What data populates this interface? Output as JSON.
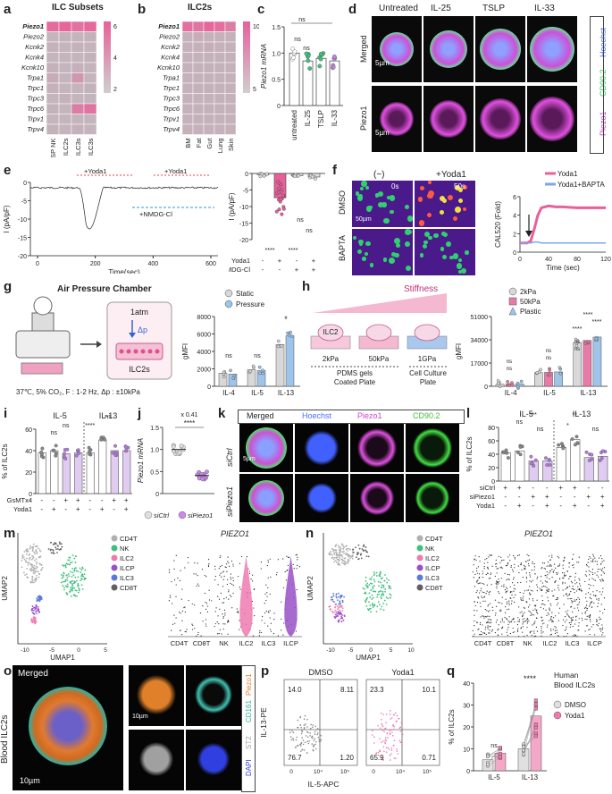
{
  "panels": {
    "a": {
      "letter": "a",
      "title": "ILC Subsets",
      "rows": [
        "Piezo1",
        "Piezo2",
        "Kcnk2",
        "Kcnk4",
        "Kcnk10",
        "Trpa1",
        "Trpc1",
        "Trpc3",
        "Trpc6",
        "Trpv1",
        "Trpv4"
      ],
      "cols": [
        "SP NK",
        "SI ILC2s",
        "DN ILC3s",
        "NKp+ ILC3s"
      ],
      "scale": [
        "6",
        "4",
        "2"
      ],
      "values": [
        [
          5.5,
          5.8,
          5.2,
          5.6
        ],
        [
          1.5,
          1.8,
          1.6,
          1.7
        ],
        [
          1.8,
          1.6,
          1.8,
          1.5
        ],
        [
          1.6,
          1.6,
          1.5,
          1.7
        ],
        [
          1.7,
          1.6,
          1.8,
          1.6
        ],
        [
          2.2,
          1.5,
          3.5,
          1.6
        ],
        [
          1.8,
          1.6,
          1.5,
          1.7
        ],
        [
          1.5,
          1.7,
          1.6,
          1.5
        ],
        [
          1.7,
          1.6,
          4.8,
          5.2
        ],
        [
          1.6,
          1.5,
          1.6,
          1.5
        ],
        [
          1.7,
          1.6,
          1.8,
          1.6
        ]
      ]
    },
    "b": {
      "letter": "b",
      "title": "ILC2s",
      "rows": [
        "Piezo1",
        "Piezo2",
        "Kcnk2",
        "Kcnk4",
        "Kcnk10",
        "Trpa1",
        "Trpc1",
        "Trpc3",
        "Trpc6",
        "Trpv1",
        "Trpv4"
      ],
      "cols": [
        "BM",
        "Fat",
        "Gut",
        "Lung",
        "Skin"
      ],
      "scale": [
        "10",
        "5"
      ],
      "values": [
        [
          9,
          8.5,
          9.5,
          9,
          8
        ],
        [
          3,
          3.5,
          3,
          3,
          3
        ],
        [
          3,
          3,
          3.5,
          3,
          3
        ],
        [
          3,
          3,
          3,
          3,
          3
        ],
        [
          3,
          3,
          3,
          3,
          3
        ],
        [
          3,
          3,
          3,
          3,
          3
        ],
        [
          3,
          3,
          3,
          3,
          3
        ],
        [
          3,
          3,
          3,
          3,
          3
        ],
        [
          3,
          3,
          3,
          3,
          3
        ],
        [
          3,
          3,
          3,
          3,
          3
        ],
        [
          3,
          3,
          3,
          3,
          3
        ]
      ]
    },
    "c": {
      "letter": "c",
      "ylabel": "Piezo1 mRNA",
      "ticks": [
        "1.5",
        "1.0",
        "0.5",
        "0"
      ],
      "groups": [
        "untreated",
        "IL-25",
        "TSLP",
        "IL-33"
      ],
      "ns": [
        "ns",
        "ns",
        "ns"
      ],
      "chart_data": {
        "type": "bar",
        "categories": [
          "untreated",
          "IL-25",
          "TSLP",
          "IL-33"
        ],
        "values": [
          1.0,
          0.85,
          0.9,
          0.85
        ],
        "ylim": [
          0,
          1.5
        ],
        "ylabel": "Piezo1 mRNA"
      }
    },
    "d": {
      "letter": "d",
      "cols": [
        "Untreated",
        "IL-25",
        "TSLP",
        "IL-33"
      ],
      "rows": [
        "Merged",
        "Piezo1"
      ],
      "scale": "5µm",
      "legend": [
        "Hoechst",
        "CD90.2",
        "Piezo1"
      ]
    },
    "e": {
      "letter": "e",
      "trace_labels": [
        "+Yoda1",
        "+Yoda1",
        "+NMDG-Cl"
      ],
      "ylabel": "I (pA/pF)",
      "xlabel": "Time(sec)",
      "xticks": [
        "0",
        "200",
        "400",
        "600"
      ],
      "yticks": [
        "0",
        "-5",
        "-10",
        "-15",
        "-20"
      ],
      "bar_ylabel": "I (pA/pF)",
      "bar_rows": [
        {
          "label": "Yoda1",
          "vals": [
            "-",
            "+",
            "-",
            "+"
          ]
        },
        {
          "label": "NMDG-Cl",
          "vals": [
            "-",
            "-",
            "+",
            "+"
          ]
        }
      ],
      "sig": [
        "****",
        "****",
        "ns",
        "ns"
      ],
      "chart_data": {
        "type": "bar",
        "categories": [
          "ctrl",
          "Yoda1",
          "NMDG-Cl",
          "Yoda1+NMDG-Cl"
        ],
        "values": [
          -0.3,
          -5.5,
          -0.5,
          -0.8
        ],
        "ylim": [
          -15,
          0
        ]
      }
    },
    "f": {
      "letter": "f",
      "headers": [
        "(−)",
        "+Yoda1"
      ],
      "rows": [
        "DMSO",
        "BAPTA"
      ],
      "times": [
        "0s",
        "50s"
      ],
      "scale": "50µm",
      "legend": [
        "Yoda1",
        "Yoda1+BAPTA"
      ],
      "ylabel": "CAL520 (Fold)",
      "xlabel": "Time (sec)",
      "xticks": [
        "0",
        "40",
        "80",
        "120"
      ],
      "yticks": [
        "6",
        "4",
        "2",
        "0"
      ],
      "chart_data": {
        "type": "line",
        "x": [
          0,
          5,
          10,
          15,
          20,
          25,
          30,
          40,
          50,
          60,
          80,
          100,
          120
        ],
        "series": [
          {
            "name": "Yoda1",
            "values": [
              1,
              1,
              1,
              1.2,
              2.5,
              4,
              4.8,
              5,
              4.9,
              4.9,
              4.8,
              4.8,
              4.8
            ]
          },
          {
            "name": "Yoda1+BAPTA",
            "values": [
              1,
              1,
              1,
              1,
              1.1,
              1.1,
              1,
              1,
              1,
              1,
              1,
              1,
              1
            ]
          }
        ],
        "ylim": [
          0,
          6
        ],
        "xlabel": "Time (sec)",
        "ylabel": "CAL520 (Fold)"
      }
    },
    "g": {
      "letter": "g",
      "title": "Air Pressure Chamber",
      "atm": "1atm",
      "dp": "Δp",
      "cells": "ILC2s",
      "cond": "37℃, 5% CO₂,  F : 1-2 Hz, Δp : ±10kPa",
      "legend": [
        "Static",
        "Pressure"
      ],
      "ylabel": "gMFI",
      "yticks": [
        "8000",
        "6000",
        "4000",
        "2000",
        "0"
      ],
      "groups": [
        "IL-4",
        "IL-5",
        "IL-13"
      ],
      "sig": [
        "ns",
        "ns",
        "*"
      ],
      "chart_data": {
        "type": "bar",
        "categories": [
          "IL-4",
          "IL-5",
          "IL-13"
        ],
        "series": [
          {
            "name": "Static",
            "values": [
              1500,
              1900,
              4800
            ]
          },
          {
            "name": "Pressure",
            "values": [
              1400,
              1800,
              5800
            ]
          }
        ],
        "ylim": [
          0,
          8000
        ],
        "ylabel": "gMFI"
      }
    },
    "h": {
      "letter": "h",
      "stiff": "Stiffness",
      "dishes": [
        "ILC2",
        "",
        ""
      ],
      "kpa": [
        "2kPa",
        "50kPa",
        "1GPa"
      ],
      "plates": [
        "PDMS gels Coated Plate",
        "Cell Culture Plate"
      ],
      "legend": [
        "2kPa",
        "50kPa",
        "Plastic"
      ],
      "ylabel": "gMFI",
      "yticks": [
        "51000",
        "34000",
        "17000",
        "0"
      ],
      "groups": [
        "IL-4",
        "IL-5",
        "IL-13"
      ],
      "sig": [
        "****",
        "****",
        "****",
        "ns",
        "ns",
        "ns",
        "ns",
        "ns",
        "ns"
      ],
      "chart_data": {
        "type": "bar",
        "categories": [
          "IL-4",
          "IL-5",
          "IL-13"
        ],
        "series": [
          {
            "name": "2kPa",
            "values": [
              1500,
              10000,
              32000
            ]
          },
          {
            "name": "50kPa",
            "values": [
              1600,
              10200,
              33500
            ]
          },
          {
            "name": "Plastic",
            "values": [
              1700,
              10500,
              36000
            ]
          }
        ],
        "ylim": [
          0,
          51000
        ],
        "ylabel": "gMFI"
      }
    },
    "i": {
      "letter": "i",
      "titles": [
        "IL-5",
        "IL-13"
      ],
      "ylabel": "% of ILC2s",
      "yticks": [
        "60",
        "40",
        "20",
        "0"
      ],
      "rows": [
        {
          "label": "GsMTx4",
          "vals": [
            "-",
            "-",
            "+",
            "+",
            "-",
            "-",
            "+",
            "+"
          ]
        },
        {
          "label": "Yoda1",
          "vals": [
            "-",
            "+",
            "-",
            "+",
            "-",
            "+",
            "-",
            "+"
          ]
        }
      ],
      "sig": [
        "ns",
        "ns",
        "****",
        "ns"
      ],
      "chart_data": {
        "type": "bar",
        "categories": [
          "IL-5 ctrl",
          "IL-5 Yoda1",
          "IL-5 GsMTx4",
          "IL-5 both",
          "IL-13 ctrl",
          "IL-13 Yoda1",
          "IL-13 GsMTx4",
          "IL-13 both"
        ],
        "values": [
          38,
          40,
          37,
          38,
          38,
          50,
          40,
          40
        ],
        "ylim": [
          0,
          60
        ],
        "ylabel": "% of ILC2s"
      }
    },
    "j": {
      "letter": "j",
      "ylabel": "Piezo1 mRNA",
      "fold": "x 0.41",
      "sig": "****",
      "yticks": [
        "1.5",
        "1.0",
        "0.5",
        "0"
      ],
      "legend": [
        "siCtrl",
        "siPiezo1"
      ],
      "chart_data": {
        "type": "scatter",
        "categories": [
          "siCtrl",
          "siPiezo1"
        ],
        "values": [
          1.0,
          0.41
        ],
        "ylim": [
          0,
          1.5
        ],
        "ylabel": "Piezo1 mRNA"
      }
    },
    "k": {
      "letter": "k",
      "cols": [
        "Merged",
        "Hoechst",
        "Piezo1",
        "CD90.2"
      ],
      "rows": [
        "siCtrl",
        "siPiezo1"
      ],
      "scale": "5µm"
    },
    "l": {
      "letter": "l",
      "titles": [
        "IL-5",
        "IL-13"
      ],
      "ylabel": "% of ILC2s",
      "yticks": [
        "80",
        "60",
        "40",
        "20",
        "0"
      ],
      "rows": [
        {
          "label": "siCtrl",
          "vals": [
            "+",
            "+",
            "-",
            "-",
            "+",
            "+",
            "-",
            "-"
          ]
        },
        {
          "label": "siPiezo1",
          "vals": [
            "-",
            "-",
            "+",
            "+",
            "-",
            "-",
            "+",
            "+"
          ]
        },
        {
          "label": "Yoda1",
          "vals": [
            "-",
            "+",
            "-",
            "+",
            "-",
            "+",
            "-",
            "+"
          ]
        }
      ],
      "sig": [
        "ns",
        "***",
        "ns",
        "**",
        "*",
        "ns"
      ],
      "chart_data": {
        "type": "bar",
        "categories": [
          "IL-5 siCtrl",
          "IL-5 siCtrl+Y",
          "IL-5 siPiezo1",
          "IL-5 siPiezo1+Y",
          "IL-13 siCtrl",
          "IL-13 siCtrl+Y",
          "IL-13 siPiezo1",
          "IL-13 siPiezo1+Y"
        ],
        "values": [
          42,
          45,
          30,
          30,
          50,
          62,
          35,
          37
        ],
        "ylim": [
          0,
          80
        ],
        "ylabel": "% of ILC2s"
      }
    },
    "m": {
      "letter": "m",
      "legend": [
        "CD4T",
        "NK",
        "ILC2",
        "ILCP",
        "ILC3",
        "CD8T"
      ],
      "xlabel": "UMAP1",
      "ylabel": "UMAP2",
      "xticks": [
        "-10",
        "-5",
        "0",
        "5"
      ],
      "gene": "PIEZO1",
      "cats": [
        "CD4T",
        "CD8T",
        "NK",
        "ILC2",
        "ILC3",
        "ILCP"
      ]
    },
    "n": {
      "letter": "n",
      "legend": [
        "CD4T",
        "NK",
        "ILC2",
        "ILCP",
        "ILC3",
        "CD8T"
      ],
      "xlabel": "UMAP1",
      "ylabel": "UMAP2",
      "xticks": [
        "-10",
        "-5",
        "0",
        "5",
        "10"
      ],
      "gene": "PIEZO1",
      "cats": [
        "CD4T",
        "CD8T",
        "NK",
        "ILC2",
        "ILC3",
        "ILCP"
      ]
    },
    "o": {
      "letter": "o",
      "label": "Merged",
      "side": "Blood ILC2s",
      "scale": "10µm",
      "scale2": "10µm",
      "legend": [
        "Piezo1",
        "CD161",
        "ST2",
        "DAPI"
      ]
    },
    "p": {
      "letter": "p",
      "headers": [
        "DMSO",
        "Yoda1"
      ],
      "ylabel": "IL-13-PE",
      "xlabel": "IL-5-APC",
      "dmso_q": [
        "14.0",
        "8.11",
        "76.7",
        "1.20"
      ],
      "yoda_q": [
        "23.3",
        "10.1",
        "65.9",
        "0.71"
      ],
      "ticks": [
        "0",
        "10⁴",
        "10⁵"
      ]
    },
    "q": {
      "letter": "q",
      "title": "Human Blood ILC2s",
      "legend": [
        "DMSO",
        "Yoda1"
      ],
      "ylabel": "% of ILC2s",
      "yticks": [
        "40",
        "30",
        "20",
        "10",
        "0"
      ],
      "groups": [
        "IL-5",
        "IL-13"
      ],
      "sig": [
        "ns",
        "****"
      ],
      "chart_data": {
        "type": "scatter",
        "categories": [
          "IL-5",
          "IL-13"
        ],
        "series": [
          {
            "name": "DMSO",
            "values": [
              5,
              10
            ]
          },
          {
            "name": "Yoda1",
            "values": [
              8,
              25
            ]
          }
        ],
        "ylim": [
          0,
          40
        ],
        "ylabel": "% of ILC2s"
      }
    }
  },
  "colors": {
    "pink": "#e8609a",
    "lightpink": "#f4b8d0",
    "gray": "#bfbfbf",
    "purple": "#c084e0",
    "blue": "#9fc4ea",
    "green": "#3fbf7f",
    "magenta": "#d040d0"
  }
}
